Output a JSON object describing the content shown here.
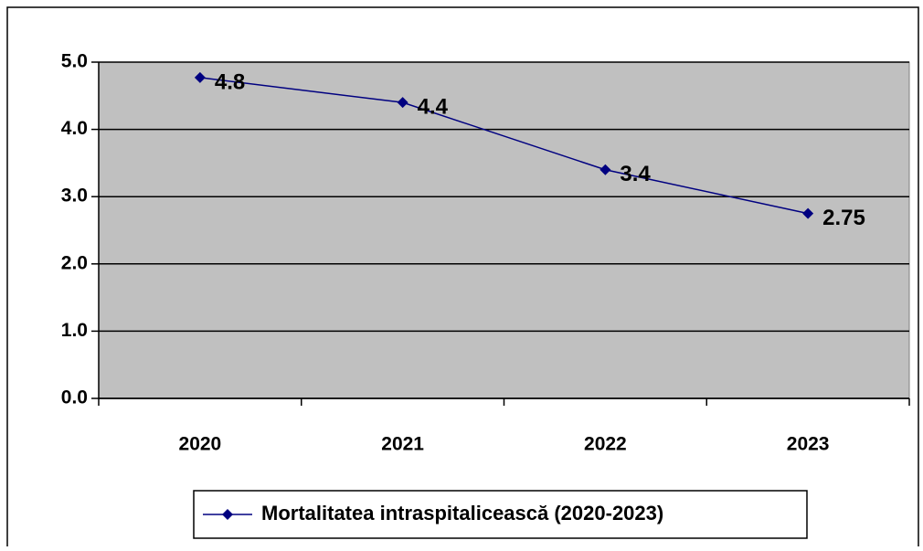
{
  "chart_data": {
    "type": "line",
    "categories": [
      "2020",
      "2021",
      "2022",
      "2023"
    ],
    "series": [
      {
        "name": "Mortalitatea intraspitalicească (2020-2023)",
        "color": "#000080",
        "values": [
          4.77,
          4.4,
          3.4,
          2.75
        ],
        "value_labels": [
          "4.8",
          "4.4",
          "3.4",
          "2.75"
        ]
      }
    ],
    "ylim": [
      0,
      5
    ],
    "yticks": [
      {
        "value": 0,
        "label": "0.0"
      },
      {
        "value": 1,
        "label": "1.0"
      },
      {
        "value": 2,
        "label": "2.0"
      },
      {
        "value": 3,
        "label": "3.0"
      },
      {
        "value": 4,
        "label": "4.0"
      },
      {
        "value": 5,
        "label": "5.0"
      }
    ],
    "grid": true,
    "legend": "bottom",
    "plot_background": "#c0c0c0"
  }
}
